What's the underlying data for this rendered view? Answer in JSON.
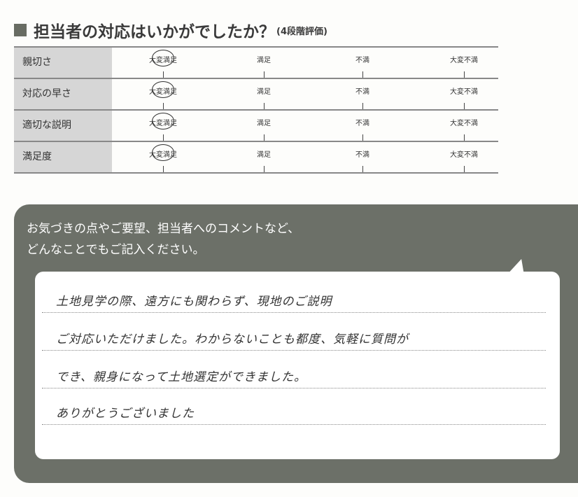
{
  "section": {
    "title": "担当者の対応はいかがでしたか？",
    "subtitle": "(4段階評価)"
  },
  "rating": {
    "options": [
      "大変満足",
      "満足",
      "不満",
      "大変不満"
    ],
    "rows": [
      {
        "label": "親切さ",
        "selected": "大変満足"
      },
      {
        "label": "対応の早さ",
        "selected": "大変満足"
      },
      {
        "label": "適切な説明",
        "selected": "大変満足"
      },
      {
        "label": "満足度",
        "selected": "大変満足"
      }
    ]
  },
  "comment": {
    "prompt_line1": "お気づきの点やご要望、担当者へのコメントなど、",
    "prompt_line2": "どんなことでもご記入ください。",
    "lines": [
      "土地見学の際、遠方にも関わらず、現地のご説明",
      "ご対応いただけました。わからないことも都度、気軽に質問が",
      "でき、親身になって土地選定ができました。",
      "ありがとうございました"
    ]
  },
  "colors": {
    "panel": "#6c7068",
    "label_bg": "#d6d6d6"
  }
}
